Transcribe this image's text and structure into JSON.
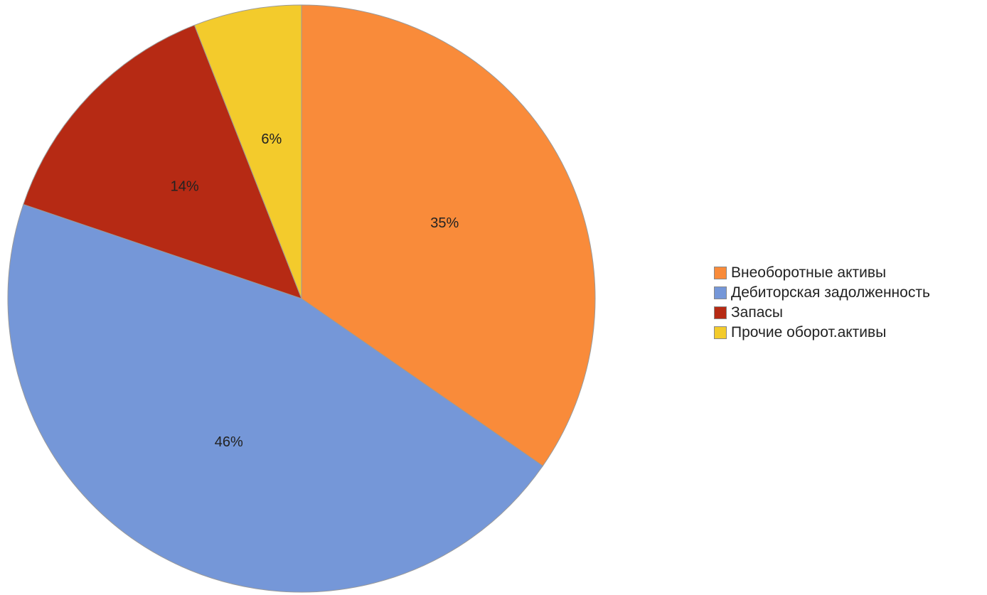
{
  "chart_data": {
    "type": "pie",
    "title": "",
    "categories": [
      "Внеоборотные активы",
      "Дебиторская задолженность",
      "Запасы",
      "Прочие оборот.активы"
    ],
    "values": [
      35,
      46,
      14,
      6
    ],
    "value_labels": [
      "35%",
      "46%",
      "14%",
      "6%"
    ],
    "colors": [
      "#f98b3a",
      "#7597d8",
      "#b62a14",
      "#f3cb2c"
    ],
    "start_angle_deg": 0,
    "direction": "clockwise",
    "legend": {
      "placement": "right",
      "items": [
        {
          "label": "Внеоборотные активы",
          "color": "#f98b3a"
        },
        {
          "label": "Дебиторская задолженность",
          "color": "#7597d8"
        },
        {
          "label": "Запасы",
          "color": "#b62a14"
        },
        {
          "label": "Прочие оборот.активы",
          "color": "#f3cb2c"
        }
      ]
    }
  }
}
